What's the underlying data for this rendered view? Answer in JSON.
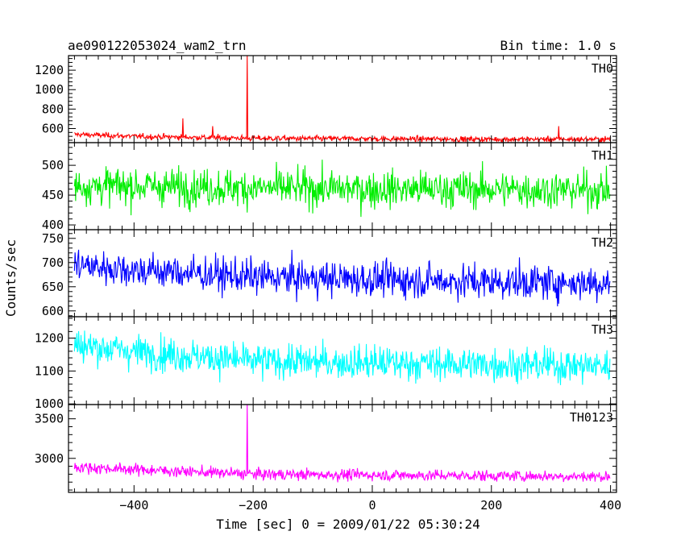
{
  "header": {
    "title": "ae090122053024_wam2_trn",
    "bin_time": "Bin time: 1.0 s"
  },
  "chart_data": {
    "type": "line",
    "title": "ae090122053024_wam2_trn",
    "subtitle": "Bin time: 1.0 s",
    "xlabel": "Time [sec] 0 = 2009/01/22 05:30:24",
    "ylabel": "Counts/sec",
    "xlim": [
      -510,
      410
    ],
    "xticks": [
      -400,
      -200,
      0,
      200,
      400
    ],
    "xtick_labels": [
      "−400",
      "−200",
      "0",
      "200",
      "400"
    ],
    "panels": [
      {
        "name": "TH0",
        "color": "#ff0000",
        "ylim": [
          455,
          1350
        ],
        "yticks": [
          600,
          800,
          1000,
          1200
        ],
        "ytick_labels": [
          "600",
          "800",
          "1000",
          "1200"
        ],
        "level": [
          [
            -500,
            540
          ],
          [
            -400,
            520
          ],
          [
            -200,
            500
          ],
          [
            0,
            495
          ],
          [
            200,
            490
          ],
          [
            400,
            490
          ]
        ],
        "noise": 22,
        "spikes": [
          [
            -318,
            705
          ],
          [
            -268,
            625
          ],
          [
            -210,
            1350
          ],
          [
            313,
            625
          ]
        ]
      },
      {
        "name": "TH1",
        "color": "#00ee00",
        "ylim": [
          392,
          538
        ],
        "yticks": [
          400,
          450,
          500
        ],
        "ytick_labels": [
          "400",
          "450",
          "500"
        ],
        "level": [
          [
            -500,
            465
          ],
          [
            -400,
            465
          ],
          [
            -200,
            462
          ],
          [
            0,
            460
          ],
          [
            200,
            460
          ],
          [
            400,
            458
          ]
        ],
        "noise": 24,
        "spikes": []
      },
      {
        "name": "TH2",
        "color": "#0000ff",
        "ylim": [
          588,
          768
        ],
        "yticks": [
          600,
          650,
          700,
          750
        ],
        "ytick_labels": [
          "600",
          "650",
          "700",
          "750"
        ],
        "level": [
          [
            -500,
            695
          ],
          [
            -400,
            685
          ],
          [
            -200,
            670
          ],
          [
            0,
            665
          ],
          [
            200,
            660
          ],
          [
            400,
            658
          ]
        ],
        "noise": 28,
        "spikes": []
      },
      {
        "name": "TH3",
        "color": "#00ffff",
        "ylim": [
          998,
          1265
        ],
        "yticks": [
          1000,
          1100,
          1200
        ],
        "ytick_labels": [
          "1000",
          "1100",
          "1200"
        ],
        "level": [
          [
            -500,
            1180
          ],
          [
            -400,
            1160
          ],
          [
            -200,
            1130
          ],
          [
            0,
            1125
          ],
          [
            200,
            1120
          ],
          [
            400,
            1115
          ]
        ],
        "noise": 40,
        "spikes": []
      },
      {
        "name": "TH0123",
        "color": "#ff00ff",
        "ylim": [
          2570,
          3680
        ],
        "yticks": [
          3000,
          3500
        ],
        "ytick_labels": [
          "3000",
          "3500"
        ],
        "level": [
          [
            -500,
            2890
          ],
          [
            -400,
            2860
          ],
          [
            -200,
            2800
          ],
          [
            0,
            2790
          ],
          [
            200,
            2780
          ],
          [
            400,
            2770
          ]
        ],
        "noise": 55,
        "spikes": [
          [
            -210,
            3700
          ]
        ]
      }
    ]
  }
}
